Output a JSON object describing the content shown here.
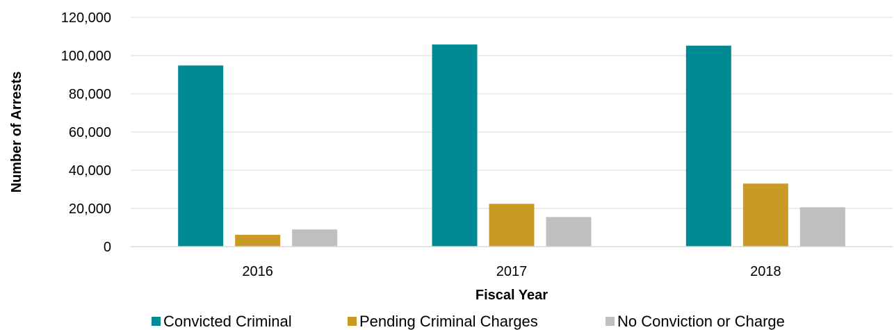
{
  "chart_data": {
    "type": "bar",
    "title": "",
    "xlabel": "Fiscal Year",
    "ylabel": "Number of Arrests",
    "categories": [
      "2016",
      "2017",
      "2018"
    ],
    "ylim": [
      0,
      120000
    ],
    "yticks": [
      0,
      20000,
      40000,
      60000,
      80000,
      100000,
      120000
    ],
    "ytick_labels": [
      "0",
      "20,000",
      "40,000",
      "60,000",
      "80,000",
      "100,000",
      "120,000"
    ],
    "grid": true,
    "legend_position": "bottom",
    "series": [
      {
        "name": "Convicted Criminal",
        "color": "#008b94",
        "values": [
          94800,
          105800,
          105200
        ]
      },
      {
        "name": "Pending Criminal Charges",
        "color": "#c99a24",
        "values": [
          6200,
          22400,
          33000
        ]
      },
      {
        "name": "No Conviction or Charge",
        "color": "#bfbfbf",
        "values": [
          9000,
          15500,
          20600
        ]
      }
    ]
  }
}
